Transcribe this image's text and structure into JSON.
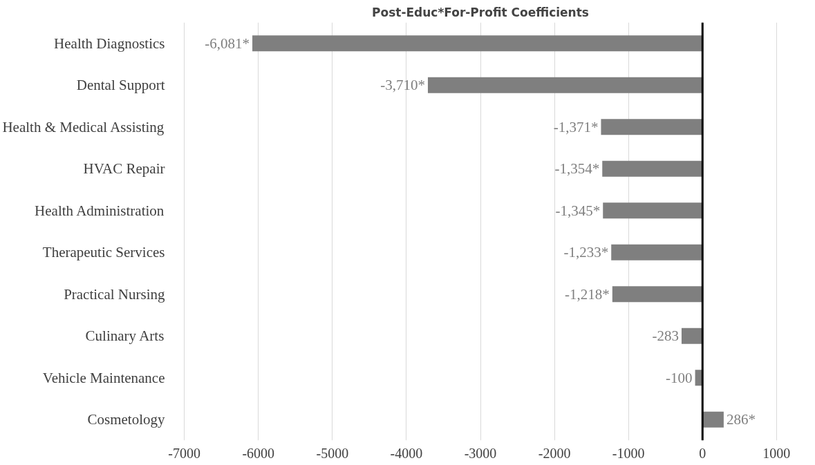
{
  "chart_data": {
    "type": "bar",
    "orientation": "horizontal",
    "title": "Post-Educ*For-Profit Coefficients",
    "categories": [
      "Health Diagnostics",
      "Dental Support",
      "Health & Medical Assisting",
      "HVAC Repair",
      "Health Administration",
      "Therapeutic Services",
      "Practical Nursing",
      "Culinary Arts",
      "Vehicle Maintenance",
      "Cosmetology"
    ],
    "values": [
      -6081,
      -3710,
      -1371,
      -1354,
      -1345,
      -1233,
      -1218,
      -283,
      -100,
      286
    ],
    "value_labels": [
      "-6,081*",
      "-3,710*",
      "-1,371*",
      "-1,354*",
      "-1,345*",
      "-1,233*",
      "-1,218*",
      "-283",
      "-100",
      "286*"
    ],
    "color": "#7f7f7f",
    "xlim": [
      -7000,
      1000
    ],
    "xticks": [
      -7000,
      -6000,
      -5000,
      -4000,
      -3000,
      -2000,
      -1000,
      0,
      1000
    ],
    "grid": "x",
    "ref_lines": [
      {
        "axis": "x",
        "value": 0,
        "label": null,
        "color": "#000000"
      }
    ]
  }
}
